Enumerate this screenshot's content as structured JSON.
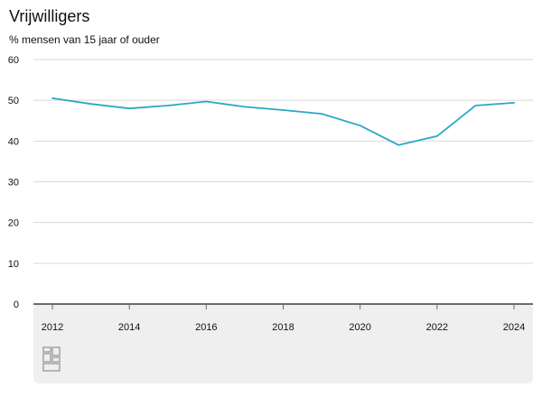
{
  "chart_data": {
    "type": "line",
    "title": "Vrijwilligers",
    "subtitle": "% mensen van 15 jaar of ouder",
    "xlabel": "",
    "ylabel": "",
    "x": [
      2012,
      2013,
      2014,
      2015,
      2016,
      2017,
      2018,
      2019,
      2020,
      2021,
      2022,
      2023,
      2024
    ],
    "series": [
      {
        "values": [
          50.5,
          49.1,
          48.0,
          48.7,
          49.7,
          48.4,
          47.6,
          46.7,
          43.8,
          39.0,
          41.2,
          48.7,
          49.4
        ]
      }
    ],
    "ylim": [
      0,
      60
    ],
    "yticks": [
      0,
      10,
      20,
      30,
      40,
      50,
      60
    ],
    "xticks": [
      2012,
      2014,
      2016,
      2018,
      2020,
      2022,
      2024
    ],
    "grid": true,
    "colors": {
      "line": "#29a8c4",
      "grid": "#d9d9d9",
      "axis": "#6b6b6b",
      "panel": "#efefef"
    },
    "logo_icon": "cbs-logo-icon"
  }
}
